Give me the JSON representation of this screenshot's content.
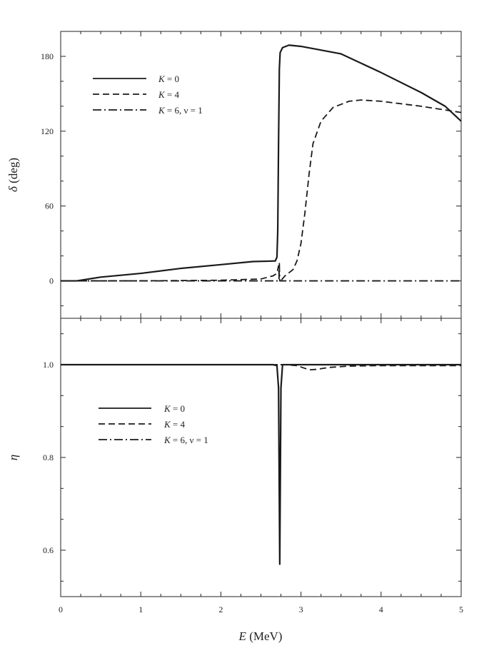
{
  "chart_data": {
    "type": "line",
    "panels": [
      {
        "id": "top",
        "ylabel_symbol": "δ",
        "ylabel_unit": " (deg)",
        "ylim": [
          -30,
          200
        ],
        "yticks": [
          0,
          60,
          120,
          180
        ],
        "ytick_labels": [
          "0",
          "60",
          "120",
          "180"
        ],
        "legend": [
          {
            "series": "K=0",
            "pre": "K",
            "post": " = 0",
            "dash": "solid"
          },
          {
            "series": "K=4",
            "pre": "K",
            "post": " = 4",
            "dash": "dashed"
          },
          {
            "series": "K=6",
            "pre": "K",
            "post": " = 6,  ν = 1",
            "dash": "dashdot"
          }
        ],
        "series": [
          {
            "name": "K = 0",
            "dash": "solid",
            "points": [
              [
                0,
                0
              ],
              [
                0.2,
                0
              ],
              [
                0.5,
                3
              ],
              [
                1.0,
                6
              ],
              [
                1.5,
                10
              ],
              [
                2.0,
                13
              ],
              [
                2.4,
                15.5
              ],
              [
                2.6,
                15.8
              ],
              [
                2.68,
                16
              ],
              [
                2.7,
                19
              ],
              [
                2.71,
                40
              ],
              [
                2.72,
                110
              ],
              [
                2.73,
                170
              ],
              [
                2.74,
                183
              ],
              [
                2.77,
                187
              ],
              [
                2.85,
                189
              ],
              [
                3.0,
                188
              ],
              [
                3.5,
                182
              ],
              [
                4.0,
                167
              ],
              [
                4.5,
                151
              ],
              [
                4.8,
                140
              ],
              [
                5.0,
                128
              ]
            ]
          },
          {
            "name": "K = 4",
            "dash": "dashed",
            "points": [
              [
                0,
                0
              ],
              [
                1.0,
                0
              ],
              [
                2.0,
                0.5
              ],
              [
                2.5,
                1.5
              ],
              [
                2.65,
                4
              ],
              [
                2.7,
                6
              ],
              [
                2.72,
                12
              ],
              [
                2.73,
                2
              ],
              [
                2.76,
                1
              ],
              [
                2.8,
                4
              ],
              [
                2.9,
                9
              ],
              [
                2.95,
                16
              ],
              [
                3.0,
                30
              ],
              [
                3.05,
                55
              ],
              [
                3.1,
                85
              ],
              [
                3.15,
                110
              ],
              [
                3.25,
                128
              ],
              [
                3.4,
                139
              ],
              [
                3.6,
                144
              ],
              [
                3.75,
                145
              ],
              [
                4.0,
                144
              ],
              [
                4.5,
                140
              ],
              [
                5.0,
                135
              ]
            ]
          },
          {
            "name": "K = 6, ν = 1",
            "dash": "dashdot",
            "points": [
              [
                0,
                0
              ],
              [
                2.7,
                0
              ],
              [
                2.725,
                0
              ],
              [
                2.73,
                14
              ],
              [
                2.735,
                0
              ],
              [
                5.0,
                0
              ]
            ]
          }
        ]
      },
      {
        "id": "bottom",
        "ylabel_symbol": "η",
        "ylabel_unit": "",
        "ylim": [
          0.5,
          1.1
        ],
        "yticks": [
          0.6,
          0.8,
          1.0
        ],
        "ytick_labels": [
          "0.6",
          "0.8",
          "1.0"
        ],
        "legend": [
          {
            "series": "K=0",
            "pre": "K",
            "post": " = 0",
            "dash": "solid"
          },
          {
            "series": "K=4",
            "pre": "K",
            "post": " = 4",
            "dash": "dashed"
          },
          {
            "series": "K=6",
            "pre": "K",
            "post": " = 6,  ν = 1",
            "dash": "dashdot"
          }
        ],
        "series": [
          {
            "name": "K = 0",
            "dash": "solid",
            "points": [
              [
                0,
                1.0
              ],
              [
                2.65,
                1.0
              ],
              [
                2.7,
                0.998
              ],
              [
                2.72,
                0.95
              ],
              [
                2.735,
                0.57
              ],
              [
                2.75,
                0.95
              ],
              [
                2.77,
                1.0
              ],
              [
                2.8,
                1.0
              ],
              [
                3.0,
                1.0
              ],
              [
                5.0,
                1.0
              ]
            ]
          },
          {
            "name": "K = 4",
            "dash": "dashed",
            "points": [
              [
                0,
                1.0
              ],
              [
                2.7,
                1.0
              ],
              [
                2.8,
                1.0
              ],
              [
                2.95,
                0.998
              ],
              [
                3.05,
                0.992
              ],
              [
                3.12,
                0.989
              ],
              [
                3.2,
                0.99
              ],
              [
                3.35,
                0.994
              ],
              [
                3.6,
                0.997
              ],
              [
                4.0,
                0.998
              ],
              [
                5.0,
                0.998
              ]
            ]
          },
          {
            "name": "K = 6, ν = 1",
            "dash": "dashdot",
            "points": [
              [
                0,
                1.0
              ],
              [
                5.0,
                1.0
              ]
            ]
          }
        ]
      }
    ],
    "x": {
      "label_symbol": "E",
      "label_unit": " (MeV)",
      "xlim": [
        0,
        5
      ],
      "ticks": [
        0,
        1,
        2,
        3,
        4,
        5
      ],
      "tick_labels": [
        "0",
        "1",
        "2",
        "3",
        "4",
        "5"
      ]
    }
  }
}
